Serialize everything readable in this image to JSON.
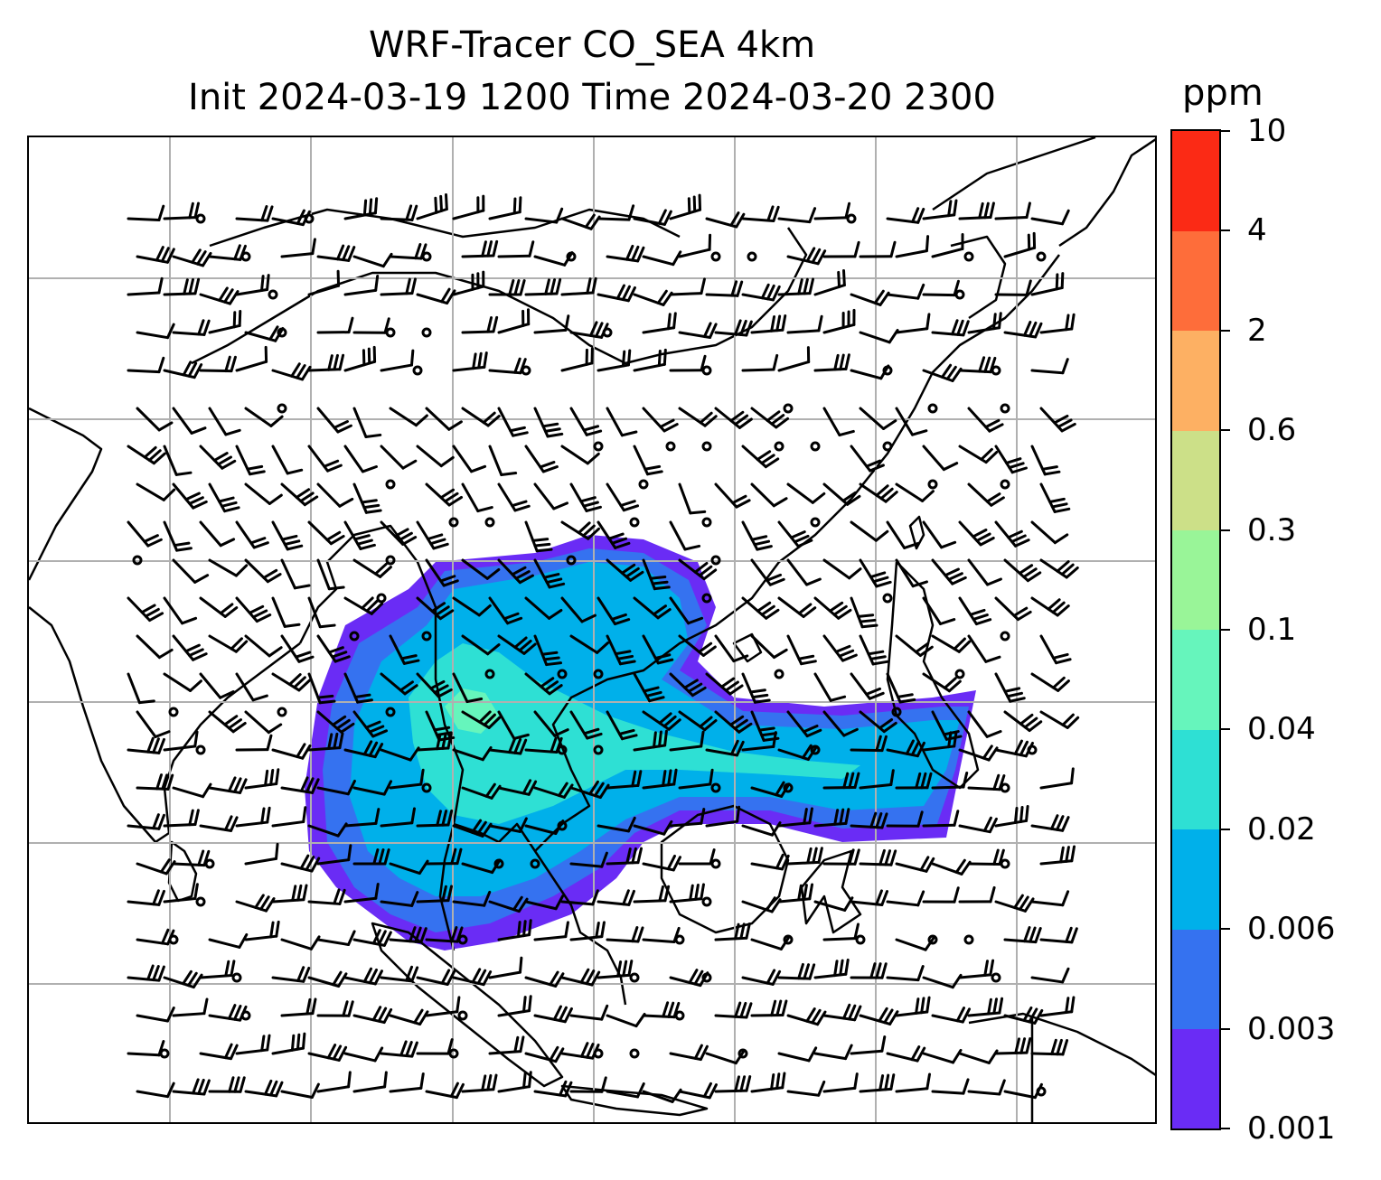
{
  "title": {
    "line1": "WRF-Tracer CO_SEA 4km",
    "line2": "Init 2024-03-19 1200 Time 2024-03-20 2300"
  },
  "colorbar": {
    "unit": "ppm",
    "levels": [
      "0.001",
      "0.003",
      "0.006",
      "0.02",
      "0.04",
      "0.1",
      "0.3",
      "0.6",
      "2",
      "4",
      "10"
    ],
    "colors": [
      "#6a2cf5",
      "#3572f0",
      "#00b0ea",
      "#2ee0d4",
      "#66f5bc",
      "#99f598",
      "#cce088",
      "#fdb063",
      "#fe6d3a",
      "#fb2a15"
    ]
  },
  "map": {
    "gridlines": true,
    "field": "CO tracer concentration",
    "wind_barbs": true
  }
}
